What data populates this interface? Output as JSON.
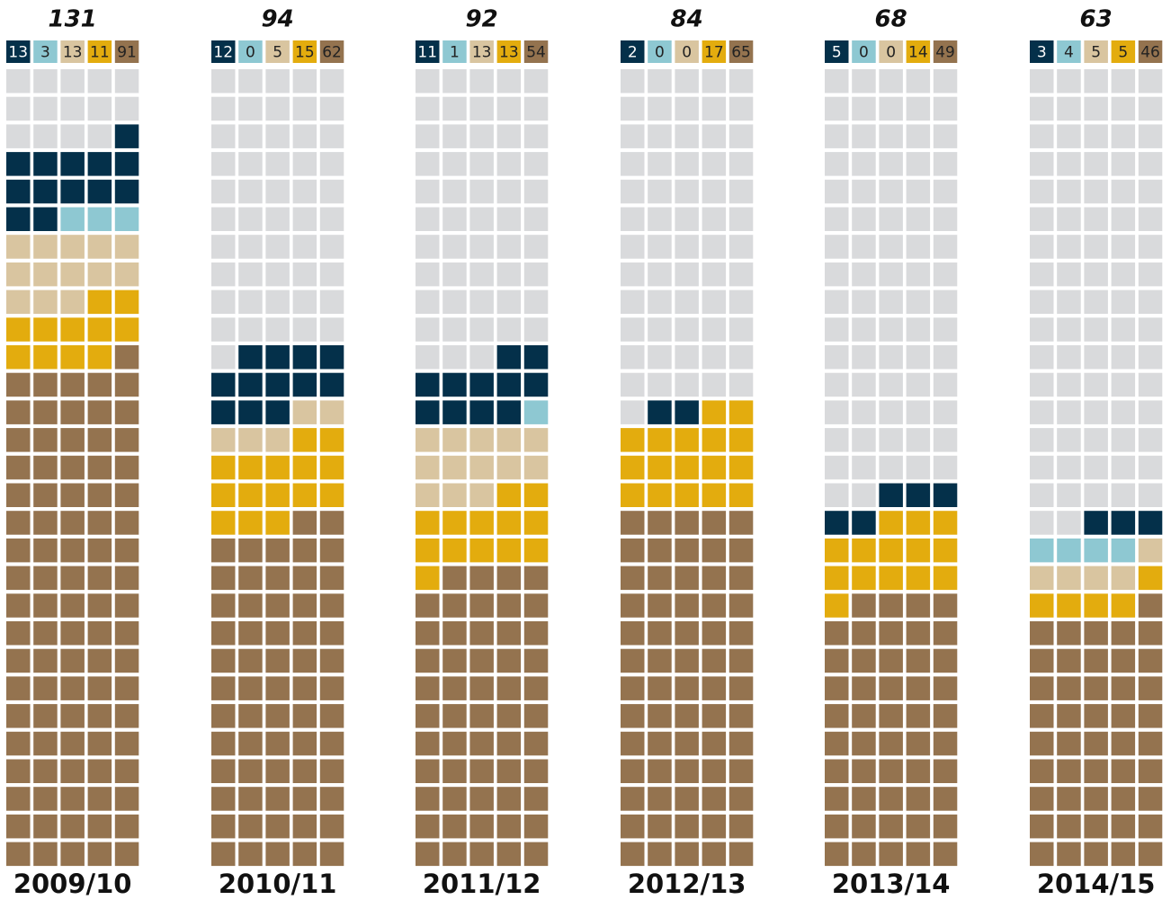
{
  "chart_data": {
    "type": "waffle",
    "categories": [
      "2009/10",
      "2010/11",
      "2011/12",
      "2012/13",
      "2013/14",
      "2014/15"
    ],
    "totals": [
      131,
      94,
      92,
      84,
      68,
      63
    ],
    "series": [
      {
        "color": "#04304a",
        "values": [
          13,
          12,
          11,
          2,
          5,
          3
        ]
      },
      {
        "color": "#8ec8d2",
        "values": [
          3,
          0,
          1,
          0,
          0,
          4
        ]
      },
      {
        "color": "#d9c5a0",
        "values": [
          13,
          5,
          13,
          0,
          0,
          5
        ]
      },
      {
        "color": "#e3ac0e",
        "values": [
          11,
          15,
          13,
          17,
          14,
          5
        ]
      },
      {
        "color": "#94734f",
        "values": [
          91,
          62,
          54,
          65,
          49,
          46
        ]
      }
    ],
    "grid_rows": 29,
    "grid_cols": 5,
    "empty_color": "#d9dadc"
  }
}
